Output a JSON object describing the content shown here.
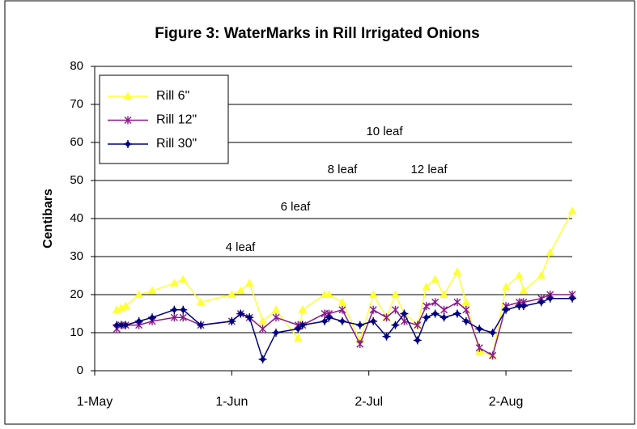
{
  "chart_data": {
    "type": "line",
    "title": "Figure 3: WaterMarks in Rill Irrigated Onions",
    "y_label": "Centibars",
    "x": [
      "6-May",
      "7-May",
      "8-May",
      "11-May",
      "14-May",
      "19-May",
      "21-May",
      "25-May",
      "1-Jun",
      "3-Jun",
      "5-Jun",
      "8-Jun",
      "11-Jun",
      "16-Jun",
      "17-Jun",
      "22-Jun",
      "23-Jun",
      "26-Jun",
      "30-Jun",
      "3-Jul",
      "6-Jul",
      "8-Jul",
      "10-Jul",
      "13-Jul",
      "15-Jul",
      "17-Jul",
      "19-Jul",
      "22-Jul",
      "24-Jul",
      "27-Jul",
      "30-Jul",
      "2-Aug",
      "5-Aug",
      "6-Aug",
      "10-Aug",
      "12-Aug",
      "17-Aug"
    ],
    "series": [
      {
        "name": "Rill 6\"",
        "color": "#ffff33",
        "marker": "triangle",
        "values": [
          16,
          16.5,
          17,
          20,
          21,
          23,
          24,
          18,
          20,
          21,
          23,
          13,
          16,
          8.5,
          16,
          20,
          20,
          18,
          8,
          20,
          14,
          20,
          15,
          12,
          22,
          24,
          20,
          26,
          18,
          5,
          4,
          22,
          25,
          21,
          25,
          31,
          42
        ]
      },
      {
        "name": "Rill 12\"",
        "color": "#8b1a8b",
        "marker": "star",
        "values": [
          11,
          12,
          12,
          12,
          13,
          14,
          14,
          12,
          13,
          15,
          14,
          11,
          14,
          12,
          12,
          15,
          15,
          16,
          7,
          16,
          14,
          16,
          13,
          12,
          17,
          18,
          16,
          18,
          16,
          6,
          4,
          17,
          18,
          18,
          19,
          20,
          20
        ]
      },
      {
        "name": "Rill 30\"",
        "color": "#000080",
        "marker": "plus",
        "values": [
          12,
          12,
          12,
          13,
          14,
          16,
          16,
          12,
          13,
          15,
          14,
          3,
          10,
          11,
          12,
          13,
          14,
          13,
          12,
          13,
          9,
          12,
          15,
          8,
          14,
          15,
          14,
          15,
          13,
          11,
          10,
          16,
          17,
          17,
          18,
          19,
          19
        ]
      }
    ],
    "xlim": [
      "1-May",
      "17-Aug"
    ],
    "xticks": [
      "1-May",
      "1-Jun",
      "2-Jul",
      "2-Aug"
    ],
    "ylim": [
      0,
      80
    ],
    "yticks": [
      0,
      10,
      20,
      30,
      40,
      50,
      60,
      70,
      80
    ],
    "grid": true,
    "legend": "upper left",
    "annotations": [
      "10 leaf",
      "8 leaf",
      "12 leaf",
      "6 leaf",
      "4 leaf"
    ]
  }
}
